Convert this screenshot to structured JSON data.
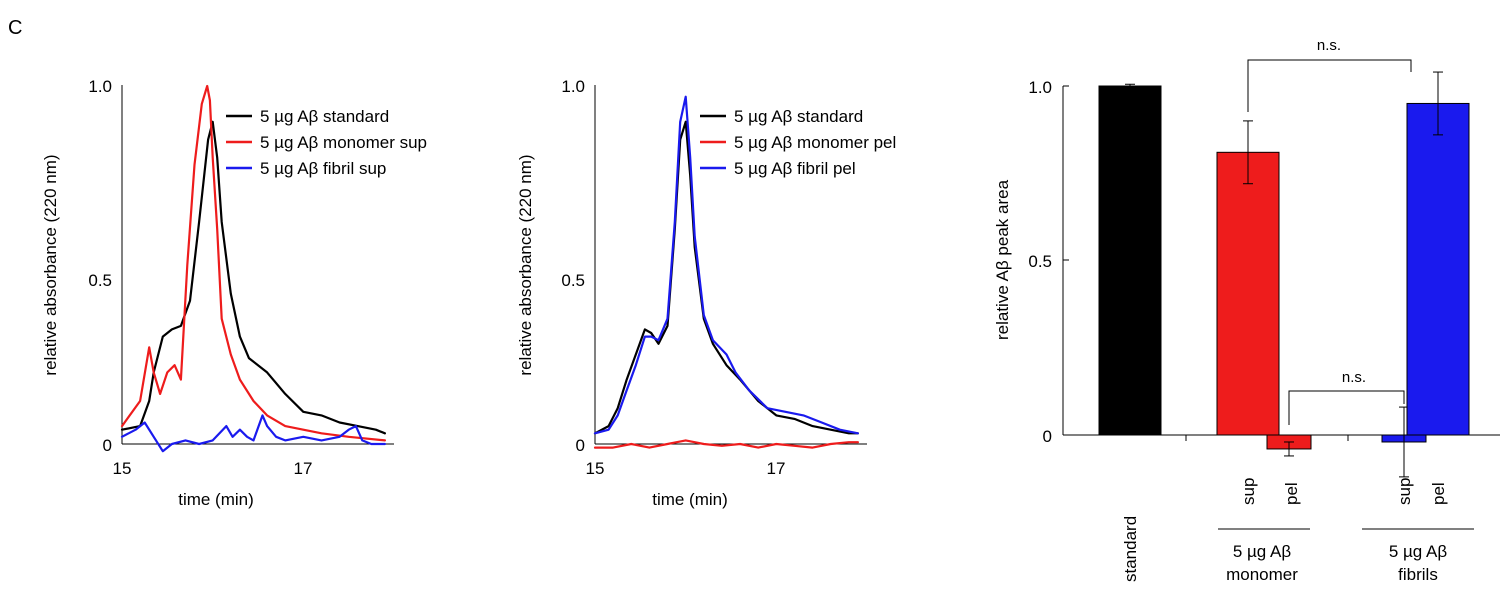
{
  "panel_label": "C",
  "chart_data": [
    {
      "type": "line",
      "ylabel": "relative absorbance (220 nm)",
      "xlabel": "time (min)",
      "xlim": [
        15,
        18
      ],
      "ylim": [
        0,
        1
      ],
      "x_ticks": [
        "15",
        "17"
      ],
      "x_tick_values": [
        15,
        17
      ],
      "y_ticks": [
        "0",
        "0.5",
        "1.0"
      ],
      "y_tick_values": [
        0,
        0.5,
        1.0
      ],
      "legend_position": "top-right",
      "series": [
        {
          "name": "5 µg Aβ standard",
          "color": "#000000",
          "x": [
            15.0,
            15.2,
            15.3,
            15.35,
            15.45,
            15.55,
            15.65,
            15.75,
            15.85,
            15.95,
            16.0,
            16.05,
            16.1,
            16.2,
            16.3,
            16.4,
            16.6,
            16.8,
            17.0,
            17.2,
            17.4,
            17.6,
            17.8,
            17.9
          ],
          "y": [
            0.04,
            0.05,
            0.12,
            0.2,
            0.3,
            0.32,
            0.33,
            0.4,
            0.62,
            0.85,
            0.9,
            0.8,
            0.62,
            0.42,
            0.3,
            0.24,
            0.2,
            0.14,
            0.09,
            0.08,
            0.06,
            0.05,
            0.04,
            0.03
          ]
        },
        {
          "name": "5 µg Aβ monomer sup",
          "color": "#ee1c1c",
          "x": [
            15.0,
            15.2,
            15.3,
            15.35,
            15.42,
            15.5,
            15.58,
            15.65,
            15.72,
            15.8,
            15.88,
            15.94,
            15.97,
            16.0,
            16.05,
            16.1,
            16.2,
            16.3,
            16.45,
            16.6,
            16.8,
            17.0,
            17.2,
            17.5,
            17.9
          ],
          "y": [
            0.05,
            0.12,
            0.27,
            0.2,
            0.14,
            0.2,
            0.22,
            0.18,
            0.5,
            0.78,
            0.95,
            1.0,
            0.96,
            0.8,
            0.6,
            0.35,
            0.25,
            0.18,
            0.12,
            0.08,
            0.05,
            0.04,
            0.03,
            0.02,
            0.01
          ]
        },
        {
          "name": "5 µg Aβ fibril sup",
          "color": "#1a1aee",
          "x": [
            15.0,
            15.15,
            15.25,
            15.35,
            15.45,
            15.55,
            15.7,
            15.85,
            16.0,
            16.15,
            16.22,
            16.3,
            16.38,
            16.45,
            16.55,
            16.6,
            16.7,
            16.8,
            17.0,
            17.2,
            17.4,
            17.5,
            17.58,
            17.65,
            17.75,
            17.9
          ],
          "y": [
            0.02,
            0.04,
            0.06,
            0.02,
            -0.02,
            0.0,
            0.01,
            0.0,
            0.01,
            0.05,
            0.02,
            0.04,
            0.02,
            0.01,
            0.08,
            0.05,
            0.02,
            0.01,
            0.02,
            0.01,
            0.02,
            0.04,
            0.05,
            0.01,
            0.0,
            0.0
          ]
        }
      ]
    },
    {
      "type": "line",
      "ylabel": "relative absorbance (220 nm)",
      "xlabel": "time (min)",
      "xlim": [
        15,
        18
      ],
      "ylim": [
        0,
        1
      ],
      "x_ticks": [
        "15",
        "17"
      ],
      "x_tick_values": [
        15,
        17
      ],
      "y_ticks": [
        "0",
        "0.5",
        "1.0"
      ],
      "y_tick_values": [
        0,
        0.5,
        1.0
      ],
      "legend_position": "top-right",
      "series": [
        {
          "name": "5 µg Aβ standard",
          "color": "#000000",
          "x": [
            15.0,
            15.15,
            15.25,
            15.35,
            15.45,
            15.55,
            15.62,
            15.7,
            15.8,
            15.88,
            15.94,
            16.0,
            16.05,
            16.1,
            16.2,
            16.3,
            16.45,
            16.6,
            16.8,
            17.0,
            17.2,
            17.4,
            17.6,
            17.8,
            17.9
          ],
          "y": [
            0.03,
            0.05,
            0.1,
            0.18,
            0.25,
            0.32,
            0.31,
            0.28,
            0.33,
            0.6,
            0.85,
            0.9,
            0.75,
            0.55,
            0.35,
            0.28,
            0.22,
            0.18,
            0.12,
            0.08,
            0.07,
            0.05,
            0.04,
            0.03,
            0.03
          ]
        },
        {
          "name": "5 µg Aβ monomer pel",
          "color": "#ee1c1c",
          "x": [
            15.0,
            15.2,
            15.4,
            15.6,
            15.8,
            15.9,
            16.0,
            16.1,
            16.2,
            16.4,
            16.6,
            16.8,
            17.0,
            17.2,
            17.4,
            17.6,
            17.8,
            17.9
          ],
          "y": [
            -0.01,
            -0.01,
            0.0,
            -0.01,
            0.0,
            0.005,
            0.01,
            0.005,
            0.0,
            -0.005,
            0.0,
            -0.01,
            0.0,
            -0.005,
            -0.01,
            0.0,
            0.005,
            0.005
          ]
        },
        {
          "name": "5 µg Aβ fibril pel",
          "color": "#1a1aee",
          "x": [
            15.0,
            15.15,
            15.25,
            15.35,
            15.45,
            15.55,
            15.62,
            15.7,
            15.8,
            15.88,
            15.94,
            16.0,
            16.05,
            16.1,
            16.2,
            16.3,
            16.45,
            16.55,
            16.7,
            16.9,
            17.1,
            17.3,
            17.5,
            17.7,
            17.9
          ],
          "y": [
            0.03,
            0.04,
            0.08,
            0.15,
            0.22,
            0.3,
            0.3,
            0.29,
            0.35,
            0.62,
            0.9,
            0.97,
            0.8,
            0.58,
            0.36,
            0.29,
            0.25,
            0.2,
            0.15,
            0.1,
            0.09,
            0.08,
            0.06,
            0.04,
            0.03
          ]
        }
      ]
    },
    {
      "type": "bar",
      "ylabel": "relative Aβ peak area",
      "ylim": [
        0,
        1
      ],
      "y_ticks": [
        "0",
        "0.5",
        "1.0"
      ],
      "y_tick_values": [
        0,
        0.5,
        1.0
      ],
      "categories": [
        "standard",
        "sup",
        "pel",
        "sup",
        "pel"
      ],
      "values": [
        1.0,
        0.81,
        -0.04,
        -0.02,
        0.95
      ],
      "errors": [
        0.005,
        0.09,
        0.02,
        0.1,
        0.09
      ],
      "colors": [
        "#000000",
        "#ee1c1c",
        "#ee1c1c",
        "#1a1aee",
        "#1a1aee"
      ],
      "groups": [
        {
          "label_line1": "5 µg Aβ",
          "label_line2": "monomer"
        },
        {
          "label_line1": "5 µg Aβ",
          "label_line2": "fibrils"
        }
      ],
      "annotations": [
        {
          "text": "n.s.",
          "between": [
            1,
            4
          ]
        },
        {
          "text": "n.s.",
          "between": [
            2,
            3
          ]
        }
      ]
    }
  ]
}
